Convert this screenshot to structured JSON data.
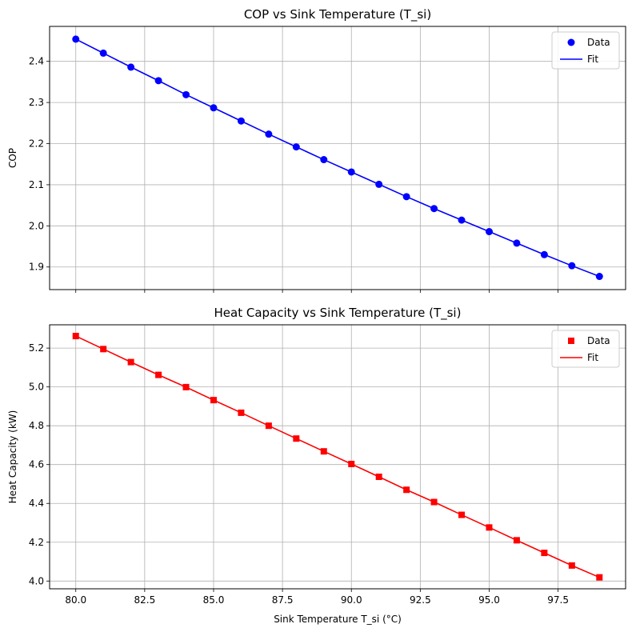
{
  "chart_data": [
    {
      "type": "line",
      "title": "COP vs Sink Temperature (T_si)",
      "xlabel": "",
      "ylabel": "COP",
      "xlim": [
        79.05,
        99.95
      ],
      "ylim": [
        1.845,
        2.485
      ],
      "x_ticks": [
        80.0,
        82.5,
        85.0,
        87.5,
        90.0,
        92.5,
        95.0,
        97.5
      ],
      "y_ticks": [
        1.9,
        2.0,
        2.1,
        2.2,
        2.3,
        2.4
      ],
      "y_tick_labels": [
        "1.9",
        "2.0",
        "2.1",
        "2.2",
        "2.3",
        "2.4"
      ],
      "grid": true,
      "legend_position": "top-right",
      "x": [
        80,
        81,
        82,
        83,
        84,
        85,
        86,
        87,
        88,
        89,
        90,
        91,
        92,
        93,
        94,
        95,
        96,
        97,
        98,
        99
      ],
      "series": [
        {
          "name": "Data",
          "style": "markers",
          "marker": "circle",
          "color": "#0000ff",
          "values": [
            2.454,
            2.42,
            2.386,
            2.353,
            2.319,
            2.287,
            2.255,
            2.223,
            2.192,
            2.161,
            2.131,
            2.101,
            2.071,
            2.042,
            2.014,
            1.986,
            1.958,
            1.93,
            1.903,
            1.877
          ]
        },
        {
          "name": "Fit",
          "style": "line",
          "color": "#0000ff",
          "values": [
            2.454,
            2.42,
            2.386,
            2.353,
            2.319,
            2.287,
            2.255,
            2.223,
            2.192,
            2.161,
            2.131,
            2.101,
            2.071,
            2.042,
            2.014,
            1.986,
            1.958,
            1.93,
            1.903,
            1.877
          ]
        }
      ]
    },
    {
      "type": "line",
      "title": "Heat Capacity vs Sink Temperature (T_si)",
      "xlabel": "Sink Temperature T_si (°C)",
      "ylabel": "Heat Capacity (kW)",
      "xlim": [
        79.05,
        99.95
      ],
      "ylim": [
        3.96,
        5.32
      ],
      "x_ticks": [
        80.0,
        82.5,
        85.0,
        87.5,
        90.0,
        92.5,
        95.0,
        97.5
      ],
      "x_tick_labels": [
        "80.0",
        "82.5",
        "85.0",
        "87.5",
        "90.0",
        "92.5",
        "95.0",
        "97.5"
      ],
      "y_ticks": [
        4.0,
        4.2,
        4.4,
        4.6,
        4.8,
        5.0,
        5.2
      ],
      "y_tick_labels": [
        "4.0",
        "4.2",
        "4.4",
        "4.6",
        "4.8",
        "5.0",
        "5.2"
      ],
      "grid": true,
      "legend_position": "top-right",
      "x": [
        80,
        81,
        82,
        83,
        84,
        85,
        86,
        87,
        88,
        89,
        90,
        91,
        92,
        93,
        94,
        95,
        96,
        97,
        98,
        99
      ],
      "series": [
        {
          "name": "Data",
          "style": "markers",
          "marker": "square",
          "color": "#ff0000",
          "values": [
            5.262,
            5.195,
            5.128,
            5.062,
            4.999,
            4.932,
            4.867,
            4.8,
            4.734,
            4.668,
            4.603,
            4.537,
            4.47,
            4.407,
            4.341,
            4.276,
            4.21,
            4.145,
            4.08,
            4.019
          ]
        },
        {
          "name": "Fit",
          "style": "line",
          "color": "#ff0000",
          "values": [
            5.262,
            5.195,
            5.128,
            5.062,
            4.999,
            4.932,
            4.867,
            4.8,
            4.734,
            4.668,
            4.603,
            4.537,
            4.47,
            4.407,
            4.341,
            4.276,
            4.21,
            4.145,
            4.08,
            4.019
          ]
        }
      ]
    }
  ]
}
